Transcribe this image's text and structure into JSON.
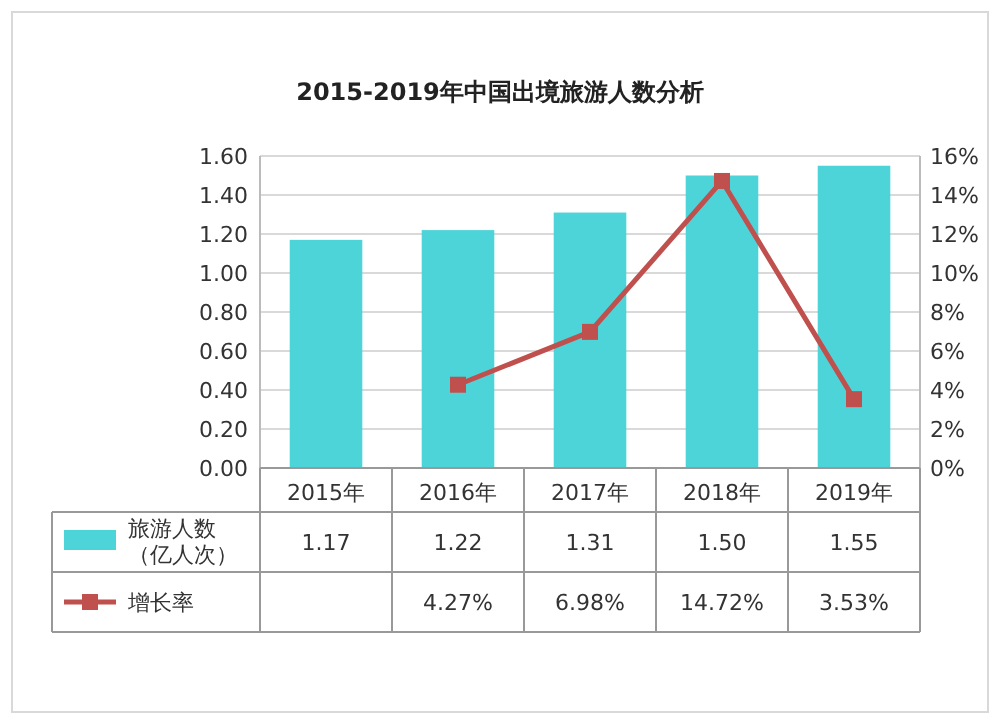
{
  "chart_data": {
    "type": "bar",
    "title": "2015-2019年中国出境旅游人数分析",
    "categories": [
      "2015年",
      "2016年",
      "2017年",
      "2018年",
      "2019年"
    ],
    "series": [
      {
        "name": "旅游人数（亿人次）",
        "color": "#4dd4d8",
        "values": [
          1.17,
          1.22,
          1.31,
          1.5,
          1.55
        ],
        "value_labels": [
          "1.17",
          "1.22",
          "1.31",
          "1.50",
          "1.55"
        ]
      },
      {
        "name": "增长率",
        "type": "line",
        "axis": "y2",
        "color": "#c0504d",
        "values": [
          null,
          4.27,
          6.98,
          14.72,
          3.53
        ],
        "value_labels": [
          null,
          "4.27%",
          "6.98%",
          "14.72%",
          "3.53%"
        ]
      }
    ],
    "ylim": [
      0,
      1.6
    ],
    "yticks": [
      "0.00",
      "0.20",
      "0.40",
      "0.60",
      "0.80",
      "1.00",
      "1.20",
      "1.40",
      "1.60"
    ],
    "y2lim": [
      0,
      16
    ],
    "y2ticks": [
      {
        "value": 0,
        "label": "0%"
      },
      {
        "value": 2,
        "label": "2%"
      },
      {
        "value": 4,
        "label": "4%"
      },
      {
        "value": 6,
        "label": "6%"
      },
      {
        "value": 8,
        "label": "8%"
      },
      {
        "value": 10,
        "label": "10%"
      },
      {
        "value": 12,
        "label": "12%"
      },
      {
        "value": 14,
        "label": "14%"
      },
      {
        "value": 16,
        "label": "16%"
      }
    ],
    "grid": "y",
    "legend": "bottom",
    "marker": "square",
    "line_style": "solid"
  }
}
